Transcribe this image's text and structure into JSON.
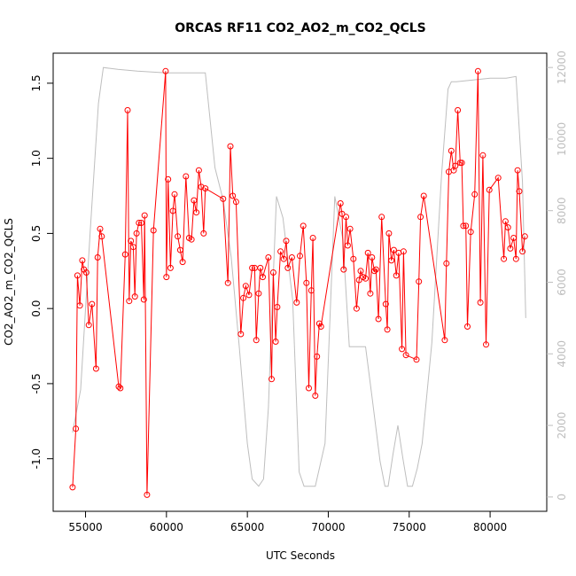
{
  "chart_data": {
    "type": "line",
    "title": "ORCAS RF11 CO2_AO2_m_CO2_QCLS",
    "xlabel": "UTC Seconds",
    "ylabel": "CO2_AO2_m_CO2_QCLS",
    "xlim": [
      53000,
      83500
    ],
    "ylim": [
      -1.35,
      1.7
    ],
    "xticks": [
      55000,
      60000,
      65000,
      70000,
      75000,
      80000
    ],
    "xtick_labels": [
      "55000",
      "60000",
      "65000",
      "70000",
      "75000",
      "80000"
    ],
    "yticks": [
      -1.0,
      -0.5,
      0.0,
      0.5,
      1.0,
      1.5
    ],
    "ytick_labels": [
      "-1.0",
      "-0.5",
      "0.0",
      "0.5",
      "1.0",
      "1.5"
    ],
    "y2lim": [
      -400,
      12400
    ],
    "y2ticks": [
      0,
      2000,
      4000,
      6000,
      8000,
      10000,
      12000
    ],
    "y2tick_labels": [
      "0",
      "2000",
      "4000",
      "6000",
      "8000",
      "10000",
      "12000"
    ],
    "colors": {
      "series": "#ff0000",
      "altitude": "#bebebe"
    },
    "series": [
      {
        "name": "CO2_AO2_m_CO2_QCLS",
        "x": [
          54200,
          54400,
          54500,
          54650,
          54800,
          54900,
          55050,
          55200,
          55400,
          55650,
          55750,
          55900,
          56000,
          57050,
          57150,
          57450,
          57600,
          57700,
          57800,
          57950,
          58050,
          58150,
          58300,
          58450,
          58600,
          58650,
          58800,
          59200,
          59950,
          60000,
          60100,
          60250,
          60400,
          60500,
          60700,
          60850,
          61000,
          61200,
          61400,
          61550,
          61700,
          61850,
          62000,
          62150,
          62300,
          62400,
          63500,
          63800,
          63950,
          64100,
          64300,
          64600,
          64750,
          64900,
          65100,
          65300,
          65450,
          65550,
          65700,
          65800,
          65950,
          66300,
          66500,
          66600,
          66750,
          66850,
          67050,
          67250,
          67400,
          67500,
          67750,
          68050,
          68250,
          68450,
          68650,
          68800,
          68950,
          69050,
          69200,
          69300,
          69450,
          69550,
          70750,
          70850,
          70950,
          71100,
          71200,
          71350,
          71550,
          71750,
          71900,
          72000,
          72150,
          72300,
          72450,
          72600,
          72700,
          72850,
          72950,
          73100,
          73300,
          73550,
          73650,
          73750,
          73900,
          74050,
          74200,
          74350,
          74550,
          74650,
          74800,
          75450,
          75600,
          75700,
          75900,
          77200,
          77300,
          77450,
          77600,
          77750,
          77850,
          78000,
          78150,
          78250,
          78350,
          78500,
          78600,
          78800,
          79050,
          79250,
          79400,
          79550,
          79750,
          79950,
          80500,
          80850,
          80950,
          81100,
          81250,
          81450,
          81600,
          81700,
          81800,
          82000,
          82150
        ],
        "y": [
          -1.19,
          -0.8,
          0.22,
          0.02,
          0.32,
          0.26,
          0.24,
          -0.11,
          0.03,
          -0.4,
          0.34,
          0.53,
          0.48,
          -0.52,
          -0.53,
          0.36,
          1.32,
          0.05,
          0.45,
          0.41,
          0.08,
          0.5,
          0.57,
          0.57,
          0.06,
          0.62,
          -1.24,
          0.52,
          1.58,
          0.21,
          0.86,
          0.27,
          0.65,
          0.76,
          0.48,
          0.39,
          0.31,
          0.88,
          0.47,
          0.46,
          0.72,
          0.64,
          0.92,
          0.81,
          0.5,
          0.8,
          0.73,
          0.17,
          1.08,
          0.75,
          0.71,
          -0.17,
          0.07,
          0.15,
          0.09,
          0.27,
          0.27,
          -0.21,
          0.1,
          0.27,
          0.21,
          0.34,
          -0.47,
          0.24,
          -0.22,
          0.01,
          0.38,
          0.33,
          0.45,
          0.27,
          0.34,
          0.04,
          0.35,
          0.55,
          0.17,
          -0.53,
          0.12,
          0.47,
          -0.58,
          -0.32,
          -0.1,
          -0.12,
          0.7,
          0.63,
          0.26,
          0.61,
          0.42,
          0.53,
          0.33,
          0.0,
          0.19,
          0.25,
          0.21,
          0.2,
          0.37,
          0.1,
          0.34,
          0.25,
          0.26,
          -0.07,
          0.61,
          0.03,
          -0.14,
          0.5,
          0.32,
          0.39,
          0.22,
          0.37,
          -0.27,
          0.38,
          -0.31,
          -0.34,
          0.18,
          0.61,
          0.75,
          -0.21,
          0.3,
          0.91,
          1.05,
          0.92,
          0.95,
          1.32,
          0.97,
          0.97,
          0.55,
          0.55,
          -0.12,
          0.51,
          0.76,
          1.58,
          0.04,
          1.02,
          -0.24,
          0.79,
          0.87,
          0.33,
          0.58,
          0.54,
          0.4,
          0.47,
          0.33,
          0.92,
          0.78,
          0.38,
          0.48
        ]
      },
      {
        "name": "altitude",
        "axis": "right",
        "x": [
          54200,
          54700,
          55300,
          55800,
          56100,
          57000,
          58200,
          60000,
          61500,
          62400,
          63000,
          63500,
          64000,
          64500,
          65000,
          65300,
          65700,
          66000,
          66300,
          66500,
          66800,
          67200,
          67800,
          68200,
          68500,
          69200,
          69800,
          70400,
          70900,
          71300,
          71800,
          72300,
          72700,
          73200,
          73500,
          73700,
          74000,
          74300,
          74600,
          74900,
          75200,
          75500,
          75800,
          76400,
          77000,
          77400,
          77600,
          77900,
          80000,
          81000,
          81600,
          82000,
          82200
        ],
        "y": [
          1800,
          3000,
          7500,
          11000,
          12000,
          11950,
          11900,
          11850,
          11850,
          11850,
          9200,
          8300,
          6700,
          4200,
          1500,
          500,
          300,
          500,
          2500,
          5000,
          8400,
          7800,
          5500,
          700,
          300,
          300,
          1500,
          8400,
          7200,
          4200,
          4200,
          4200,
          2800,
          1000,
          300,
          300,
          1200,
          2000,
          1100,
          300,
          300,
          800,
          1500,
          4300,
          9000,
          11400,
          11600,
          11600,
          11700,
          11700,
          11750,
          8800,
          5000
        ]
      }
    ]
  }
}
